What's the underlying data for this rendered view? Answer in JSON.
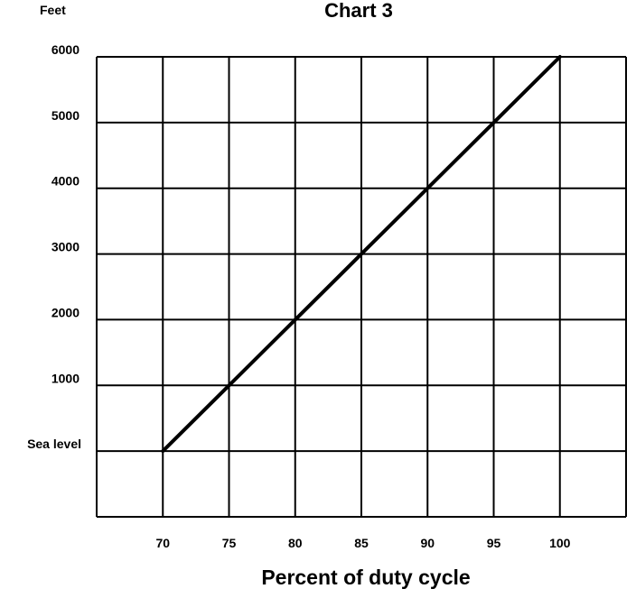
{
  "chart_data": {
    "type": "line",
    "title": "Chart 3",
    "y_unit_label": "Feet",
    "xlabel": "Percent of duty cycle",
    "ylabel": "",
    "x_ticks": [
      {
        "value": 70,
        "label": "70"
      },
      {
        "value": 75,
        "label": "75"
      },
      {
        "value": 80,
        "label": "80"
      },
      {
        "value": 85,
        "label": "85"
      },
      {
        "value": 90,
        "label": "90"
      },
      {
        "value": 95,
        "label": "95"
      },
      {
        "value": 100,
        "label": "100"
      }
    ],
    "y_ticks": [
      {
        "value": 0,
        "label": "Sea level"
      },
      {
        "value": 1000,
        "label": "1000"
      },
      {
        "value": 2000,
        "label": "2000"
      },
      {
        "value": 3000,
        "label": "3000"
      },
      {
        "value": 4000,
        "label": "4000"
      },
      {
        "value": 5000,
        "label": "5000"
      },
      {
        "value": 6000,
        "label": "6000"
      }
    ],
    "xlim": [
      65,
      105
    ],
    "ylim": [
      -1000,
      6000
    ],
    "grid": true,
    "series": [
      {
        "x": [
          70,
          75,
          80,
          85,
          90,
          95,
          100
        ],
        "y": [
          0,
          1000,
          2000,
          3000,
          4000,
          5000,
          6000
        ]
      }
    ]
  }
}
